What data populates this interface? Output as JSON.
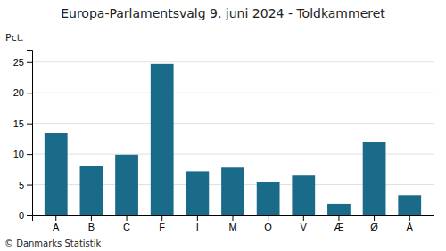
{
  "chart_data": {
    "type": "bar",
    "title": "Europa-Parlamentsvalg 9. juni 2024 - Toldkammeret",
    "ylabel": "Pct.",
    "annotations": [
      "© Danmarks Statistik"
    ],
    "categories": [
      "A",
      "B",
      "C",
      "F",
      "I",
      "M",
      "O",
      "V",
      "Æ",
      "Ø",
      "Å"
    ],
    "values": [
      13.5,
      8.1,
      9.9,
      24.7,
      7.2,
      7.8,
      5.5,
      6.5,
      1.9,
      12.0,
      3.3
    ],
    "color": "#1a6b8a",
    "ylim": [
      0,
      27
    ],
    "yticks": [
      0,
      5,
      10,
      15,
      20,
      25
    ],
    "grid": true
  }
}
